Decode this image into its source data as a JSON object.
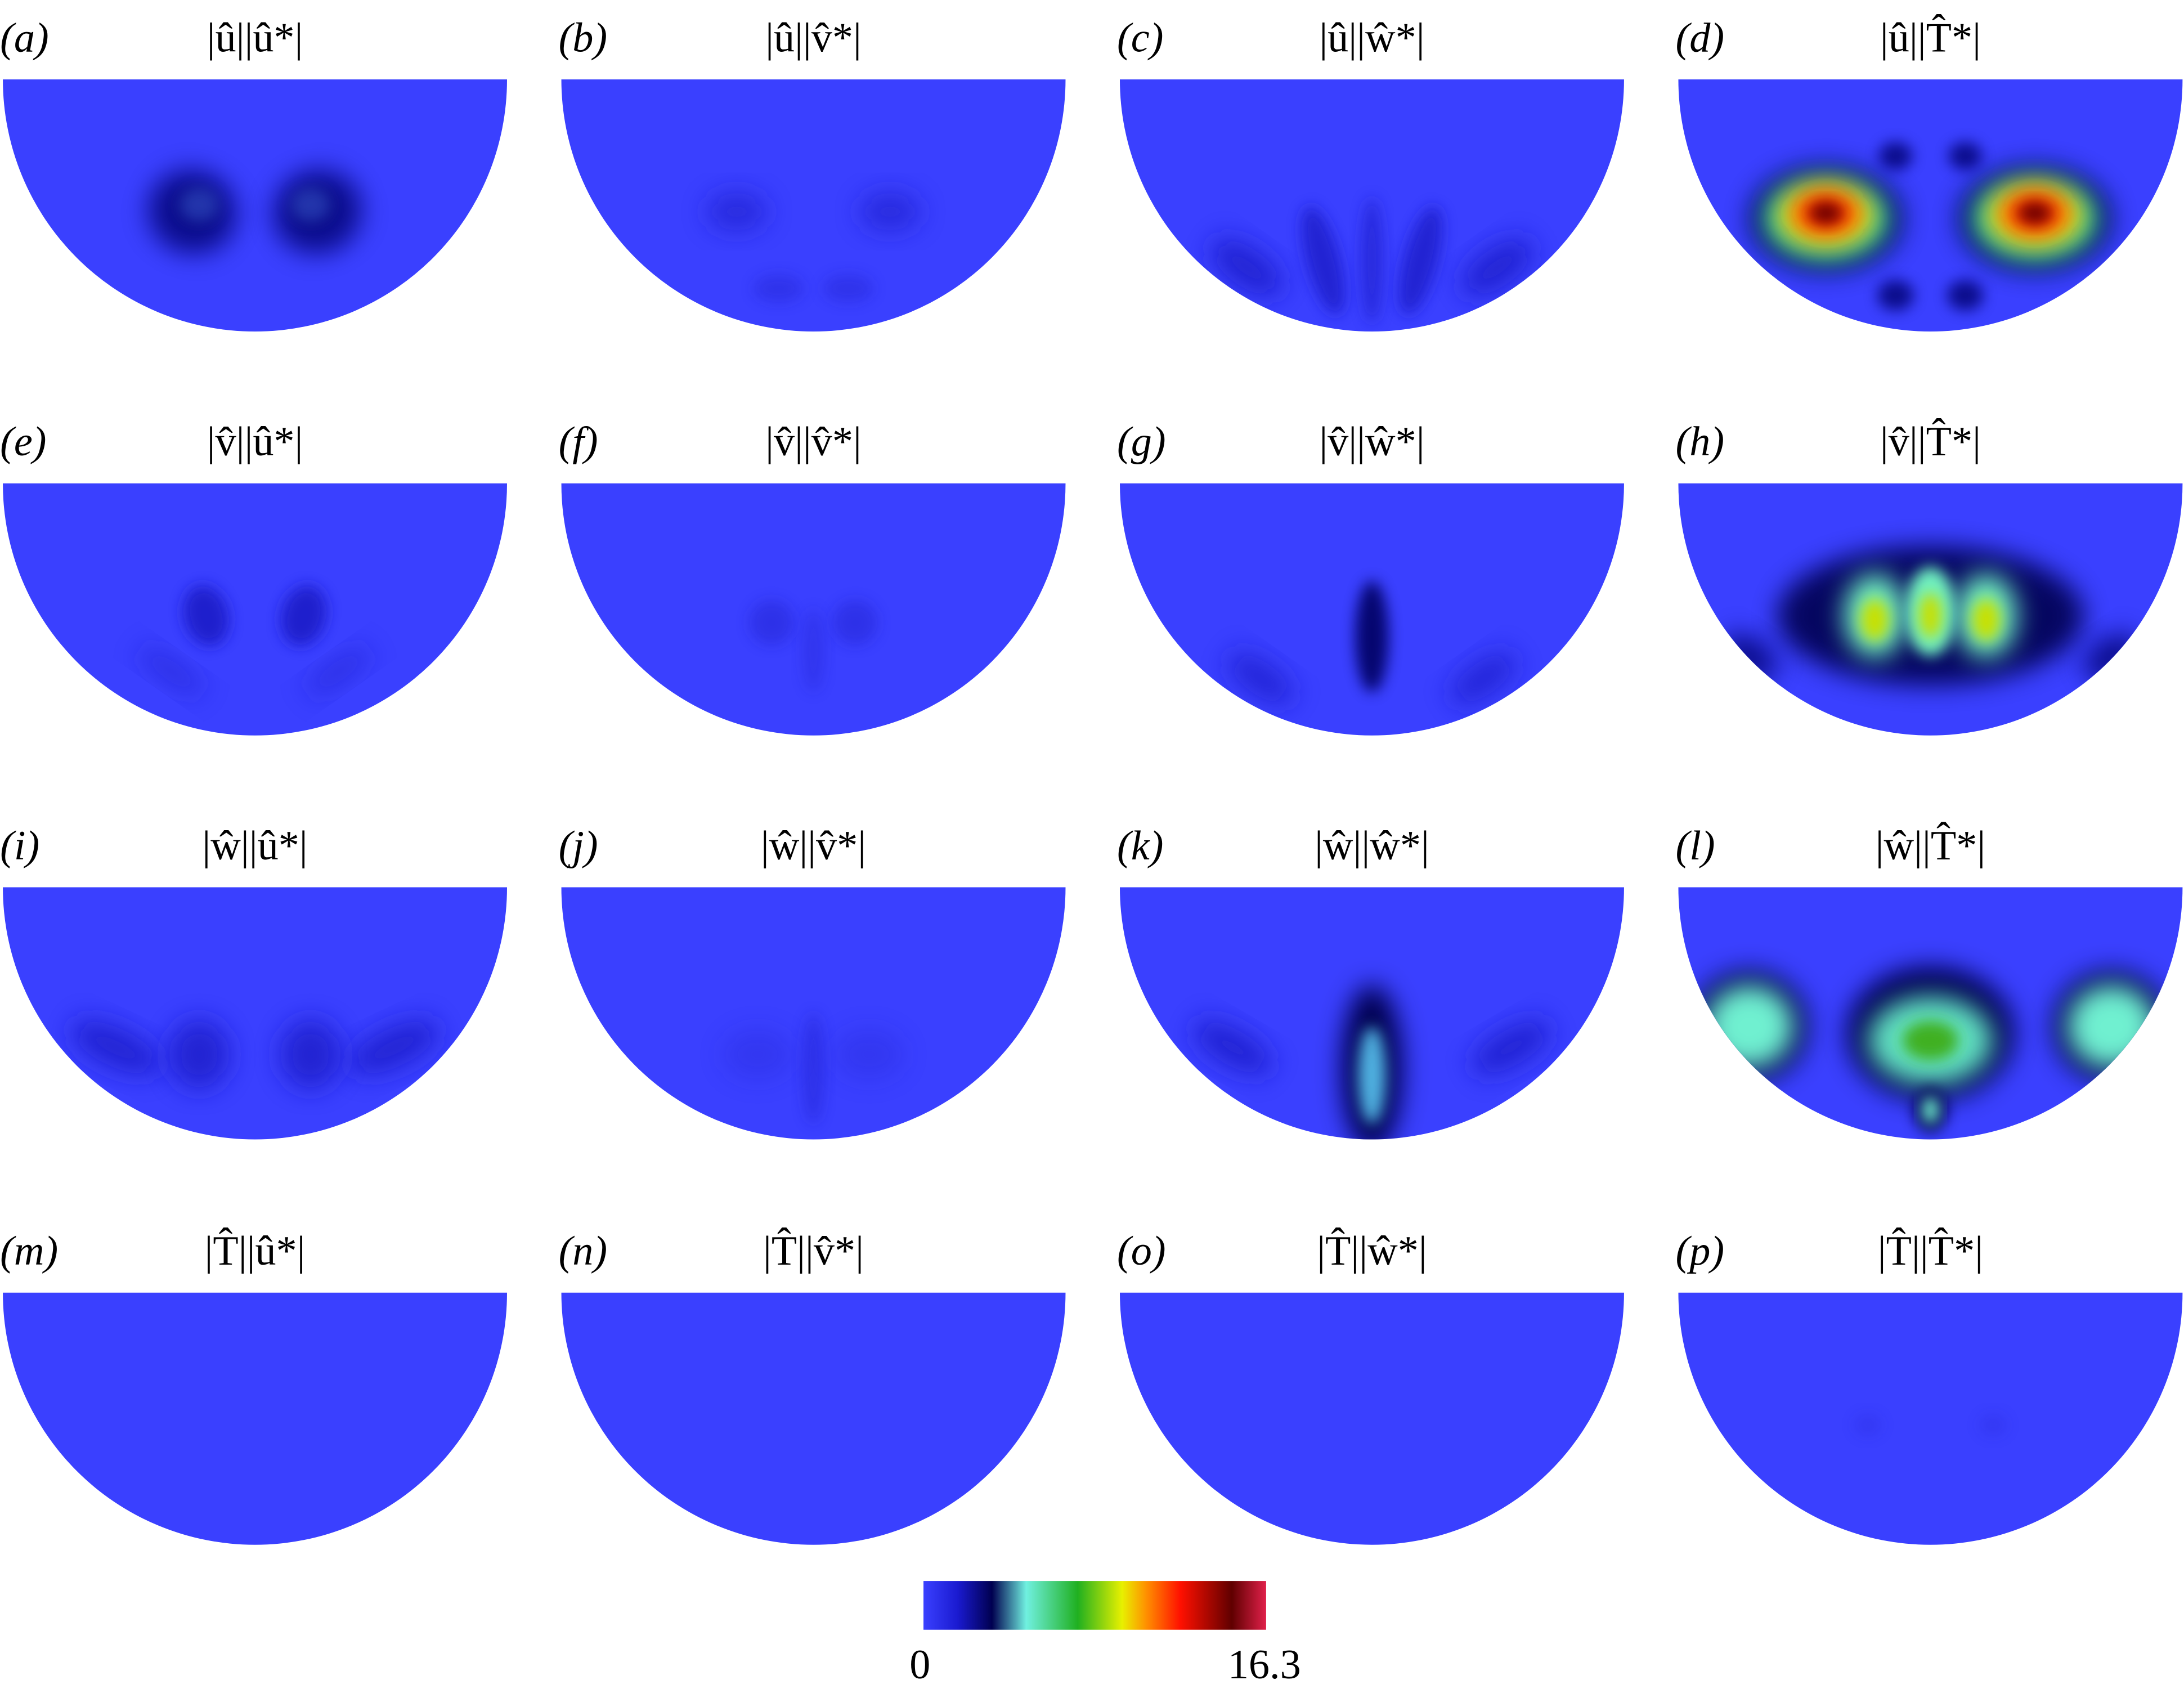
{
  "panels": [
    {
      "label": "(a)",
      "title": "|û||û*|"
    },
    {
      "label": "(b)",
      "title": "|û||v̂*|"
    },
    {
      "label": "(c)",
      "title": "|û||ŵ*|"
    },
    {
      "label": "(d)",
      "title": "|û||T̂*|"
    },
    {
      "label": "(e)",
      "title": "|v̂||û*|"
    },
    {
      "label": "(f)",
      "title": "|v̂||v̂*|"
    },
    {
      "label": "(g)",
      "title": "|v̂||ŵ*|"
    },
    {
      "label": "(h)",
      "title": "|v̂||T̂*|"
    },
    {
      "label": "(i)",
      "title": "|ŵ||û*|"
    },
    {
      "label": "(j)",
      "title": "|ŵ||v̂*|"
    },
    {
      "label": "(k)",
      "title": "|ŵ||ŵ*|"
    },
    {
      "label": "(l)",
      "title": "|ŵ||T̂*|"
    },
    {
      "label": "(m)",
      "title": "|T̂||û*|"
    },
    {
      "label": "(n)",
      "title": "|T̂||v̂*|"
    },
    {
      "label": "(o)",
      "title": "|T̂||ŵ*|"
    },
    {
      "label": "(p)",
      "title": "|T̂||T̂*|"
    }
  ],
  "colorbar": {
    "lim": [
      0,
      16.3
    ],
    "ticks": [
      0,
      16.3
    ]
  }
}
